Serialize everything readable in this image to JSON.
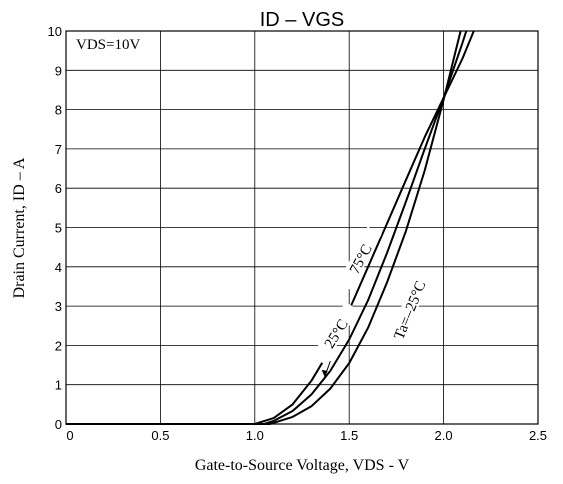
{
  "chart_data": {
    "type": "line",
    "title": "ID – VGS",
    "x_label": "Gate-to-Source Voltage, VDS - V",
    "y_label": "Drain Current, ID – A",
    "annotation": "VDS=10V",
    "xlim": [
      0,
      2.5
    ],
    "ylim": [
      0,
      10
    ],
    "xticks": [
      0,
      0.5,
      {
        "value": 1.0,
        "label": "1.0"
      },
      1.5,
      {
        "value": 2.0,
        "label": "2.0"
      },
      2.5
    ],
    "yticks": [
      0,
      1,
      2,
      3,
      4,
      5,
      6,
      7,
      8,
      9,
      10
    ],
    "grid": true,
    "series": [
      {
        "name": "75°C",
        "color": "#000000",
        "x": [
          0,
          1.0,
          1.1,
          1.2,
          1.3,
          1.4,
          1.5,
          1.6,
          1.7,
          1.8,
          1.9,
          2.0,
          2.1,
          2.16
        ],
        "values": [
          0,
          0,
          0.15,
          0.5,
          1.1,
          1.9,
          2.9,
          4.0,
          5.1,
          6.2,
          7.3,
          8.3,
          9.3,
          10
        ]
      },
      {
        "name": "25°C",
        "color": "#000000",
        "x": [
          0,
          1.05,
          1.1,
          1.2,
          1.3,
          1.4,
          1.5,
          1.6,
          1.7,
          1.8,
          1.9,
          2.0,
          2.1,
          2.12
        ],
        "values": [
          0,
          0,
          0.08,
          0.33,
          0.75,
          1.35,
          2.15,
          3.15,
          4.35,
          5.65,
          7.0,
          8.3,
          9.7,
          10
        ]
      },
      {
        "name": "Ta=–25°C",
        "color": "#000000",
        "x": [
          0,
          1.08,
          1.1,
          1.2,
          1.3,
          1.4,
          1.5,
          1.6,
          1.7,
          1.8,
          1.9,
          2.0,
          2.09
        ],
        "values": [
          0,
          0,
          0.03,
          0.18,
          0.45,
          0.9,
          1.55,
          2.45,
          3.6,
          4.9,
          6.45,
          8.25,
          10
        ]
      }
    ]
  }
}
